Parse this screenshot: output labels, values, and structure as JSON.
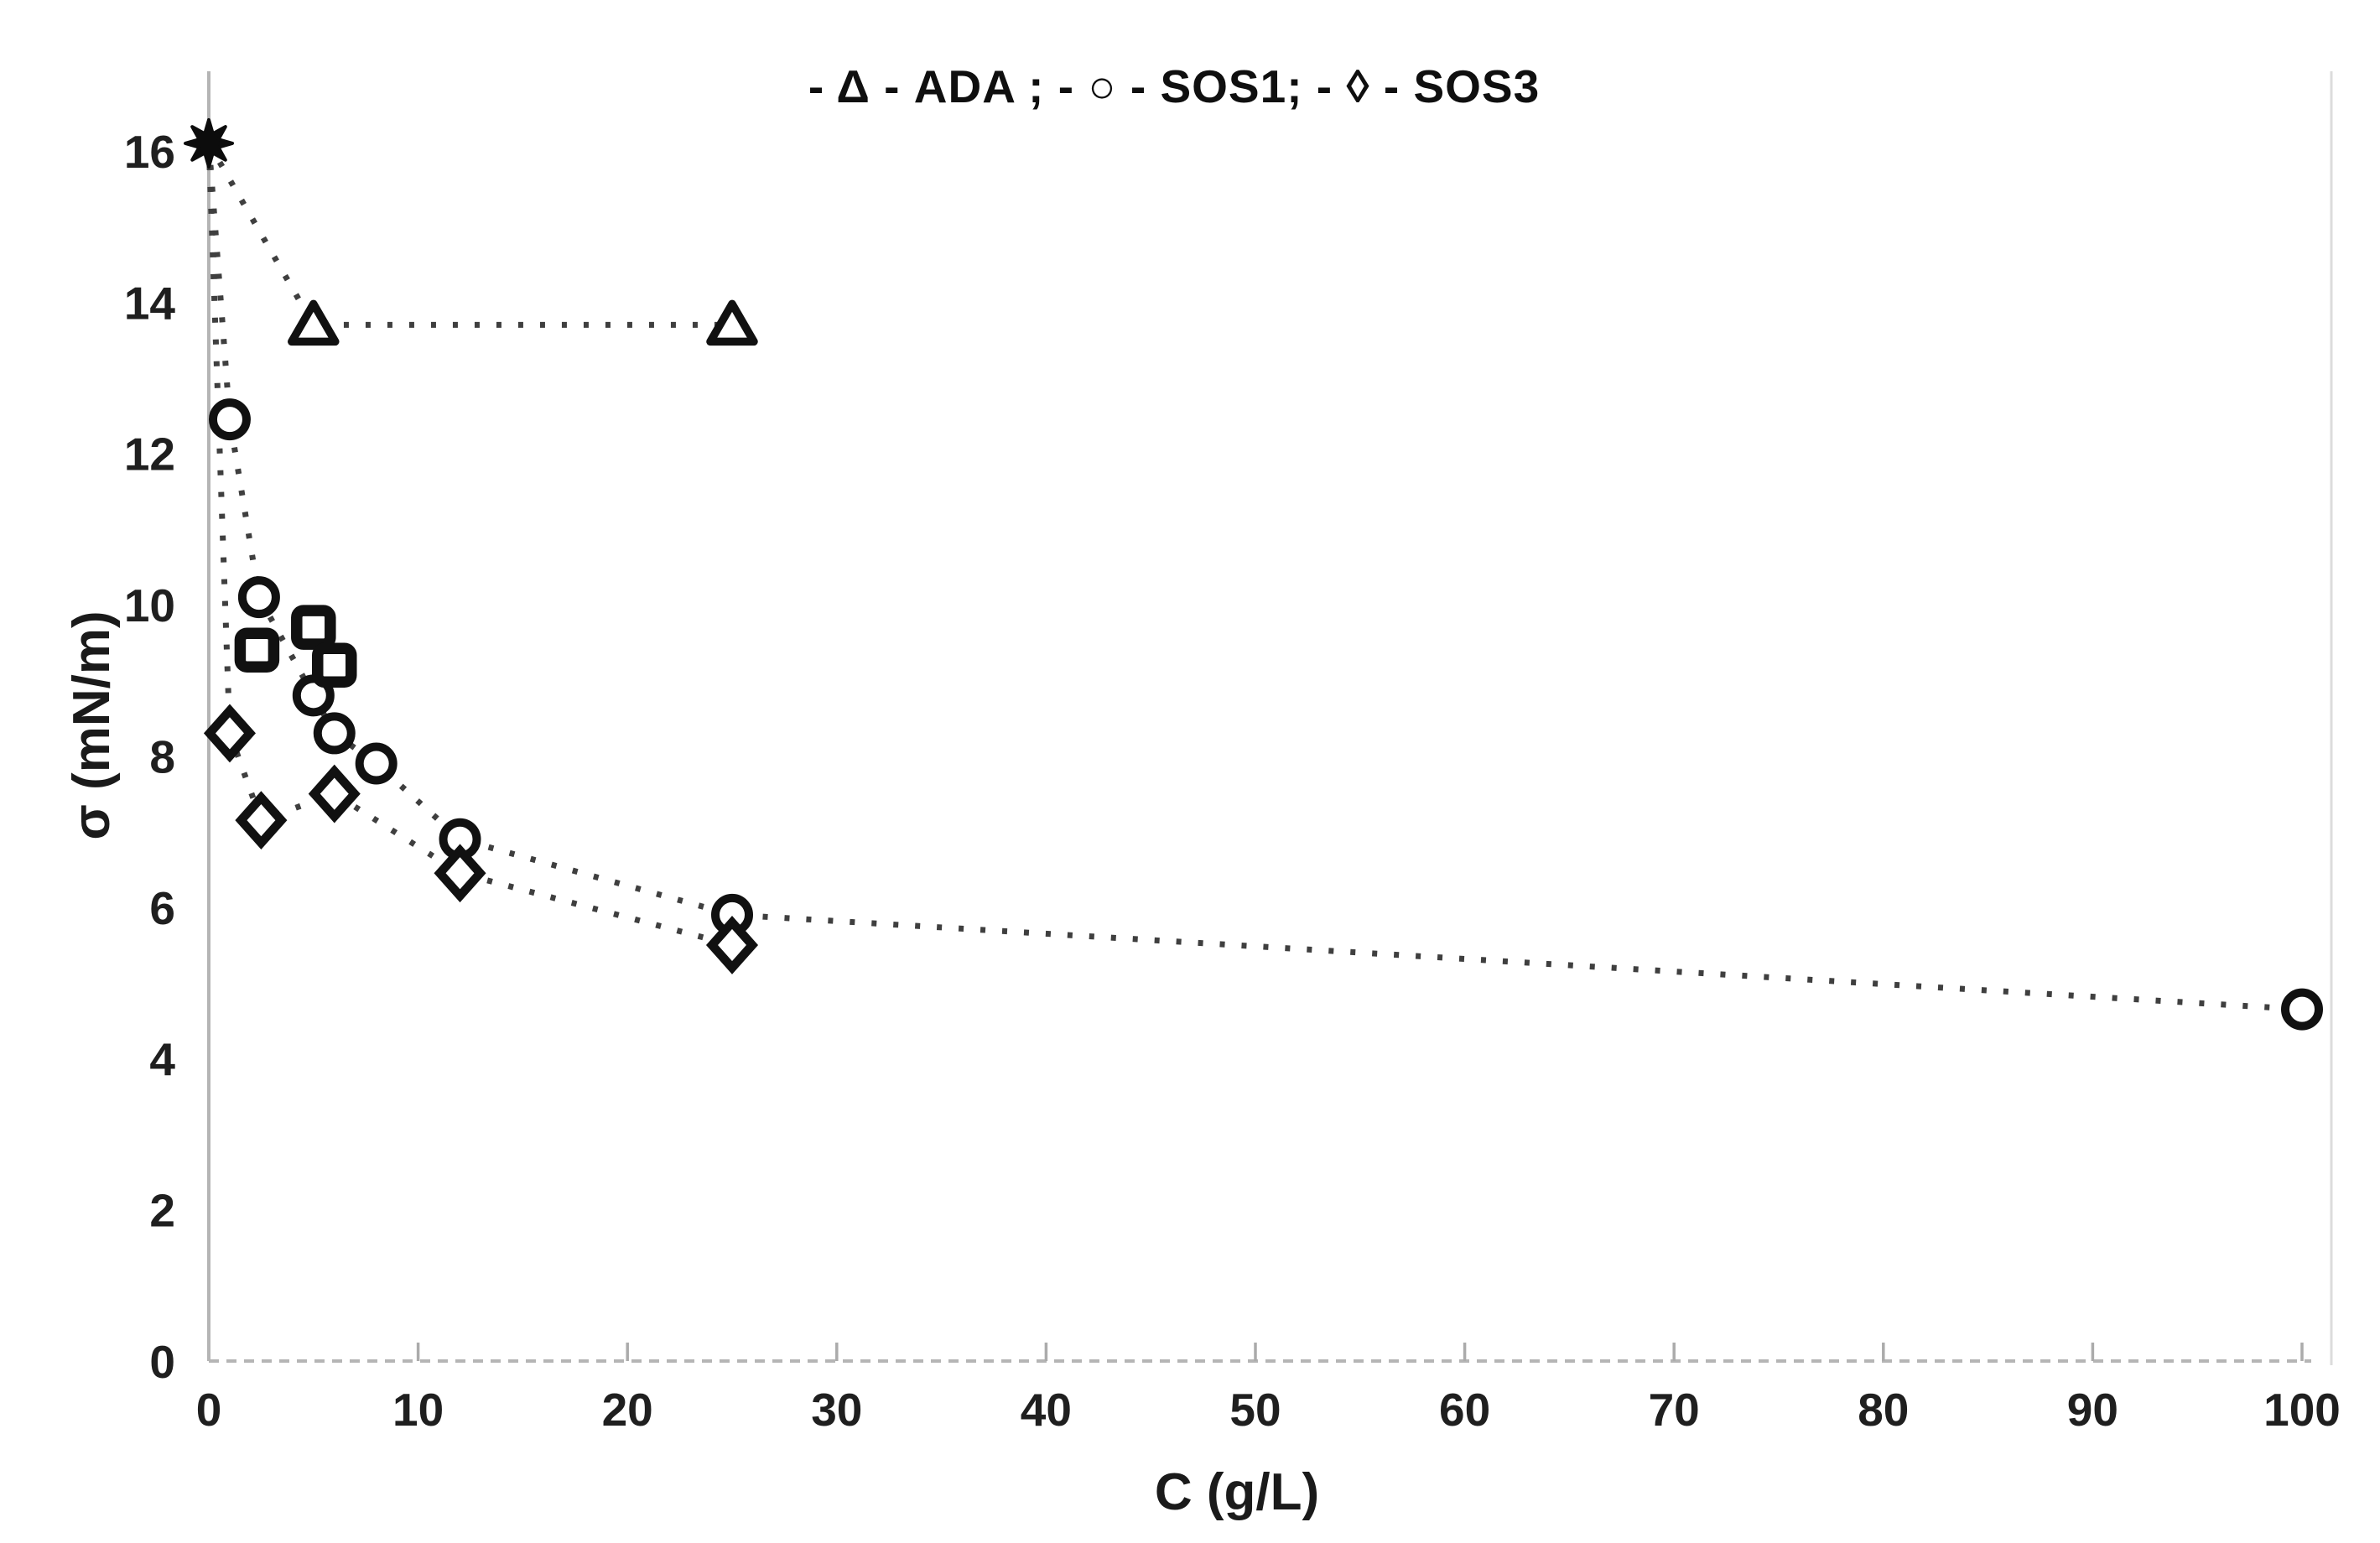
{
  "chart_data": {
    "type": "scatter",
    "title": "",
    "xlabel": "C (g/L)",
    "ylabel": "σ (mN/m)",
    "xlim": [
      0,
      100
    ],
    "ylim": [
      0,
      16
    ],
    "xticks": [
      0,
      10,
      20,
      30,
      40,
      50,
      60,
      70,
      80,
      90,
      100
    ],
    "yticks": [
      0,
      2,
      4,
      6,
      8,
      10,
      12,
      14,
      16
    ],
    "grid": false,
    "legend_position": "top-center",
    "legend_text": "- Δ - ADA ; - ○ - SOS1;  - ◊ - SOS3",
    "legend_entries": [
      {
        "symbol": "Δ",
        "marker": "triangle",
        "label": "ADA"
      },
      {
        "symbol": "○",
        "marker": "circle",
        "label": "SOS1"
      },
      {
        "symbol": "◊",
        "marker": "diamond",
        "label": "SOS3"
      }
    ],
    "shared_start_point": {
      "marker": "star8",
      "x": 0,
      "y": 16.1
    },
    "series": [
      {
        "name": "ADA",
        "marker": "triangle",
        "line": "dotted",
        "points": [
          [
            0,
            16.1
          ],
          [
            5,
            13.7
          ],
          [
            25,
            13.7
          ]
        ]
      },
      {
        "name": "SOS1",
        "marker": "circle",
        "line": "dotted",
        "points": [
          [
            0,
            16.1
          ],
          [
            1,
            12.45
          ],
          [
            2.4,
            10.1
          ],
          [
            5,
            8.8
          ],
          [
            6,
            8.3
          ],
          [
            8,
            7.9
          ],
          [
            12,
            6.9
          ],
          [
            25,
            5.9
          ],
          [
            100,
            4.65
          ]
        ]
      },
      {
        "name": "SOS3",
        "marker": "diamond",
        "line": "dotted",
        "points": [
          [
            0,
            16.1
          ],
          [
            1,
            8.3
          ],
          [
            2.5,
            7.15
          ],
          [
            6,
            7.5
          ],
          [
            12,
            6.45
          ],
          [
            25,
            5.5
          ]
        ]
      },
      {
        "name": "unlabeled-squares",
        "marker": "square",
        "line": "none",
        "points": [
          [
            2.3,
            9.4
          ],
          [
            5,
            9.7
          ],
          [
            6,
            9.2
          ]
        ]
      }
    ],
    "colors": {
      "marker_stroke": "#111111",
      "marker_fill": "#ffffff",
      "line": "#3f3f3f",
      "axis": "#b5b5b5",
      "tick": "#ababab",
      "frame": "#dcdcdc",
      "text": "#1a1a1a",
      "background": "#ffffff"
    }
  }
}
